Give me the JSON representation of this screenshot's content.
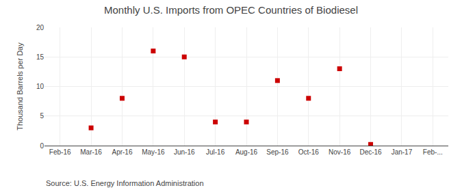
{
  "chart_data": {
    "type": "scatter",
    "title": "Monthly U.S. Imports from OPEC Countries of Biodiesel",
    "ylabel": "Thousand Barrels per Day",
    "annotations": [
      "Source: U.S. Energy Information Administration"
    ],
    "categories": [
      "Feb-16",
      "Mar-16",
      "Apr-16",
      "May-16",
      "Jun-16",
      "Jul-16",
      "Aug-16",
      "Sep-16",
      "Oct-16",
      "Nov-16",
      "Dec-16",
      "Jan-17",
      "Feb-..."
    ],
    "values": [
      null,
      3.0,
      8.0,
      16.0,
      15.0,
      4.0,
      4.0,
      11.0,
      8.0,
      13.0,
      0.2,
      null,
      null
    ],
    "color": "#cc0000",
    "marker": "square",
    "ylim": [
      0,
      20
    ],
    "yticks": [
      0,
      5,
      10,
      15,
      20
    ],
    "grid": true
  }
}
